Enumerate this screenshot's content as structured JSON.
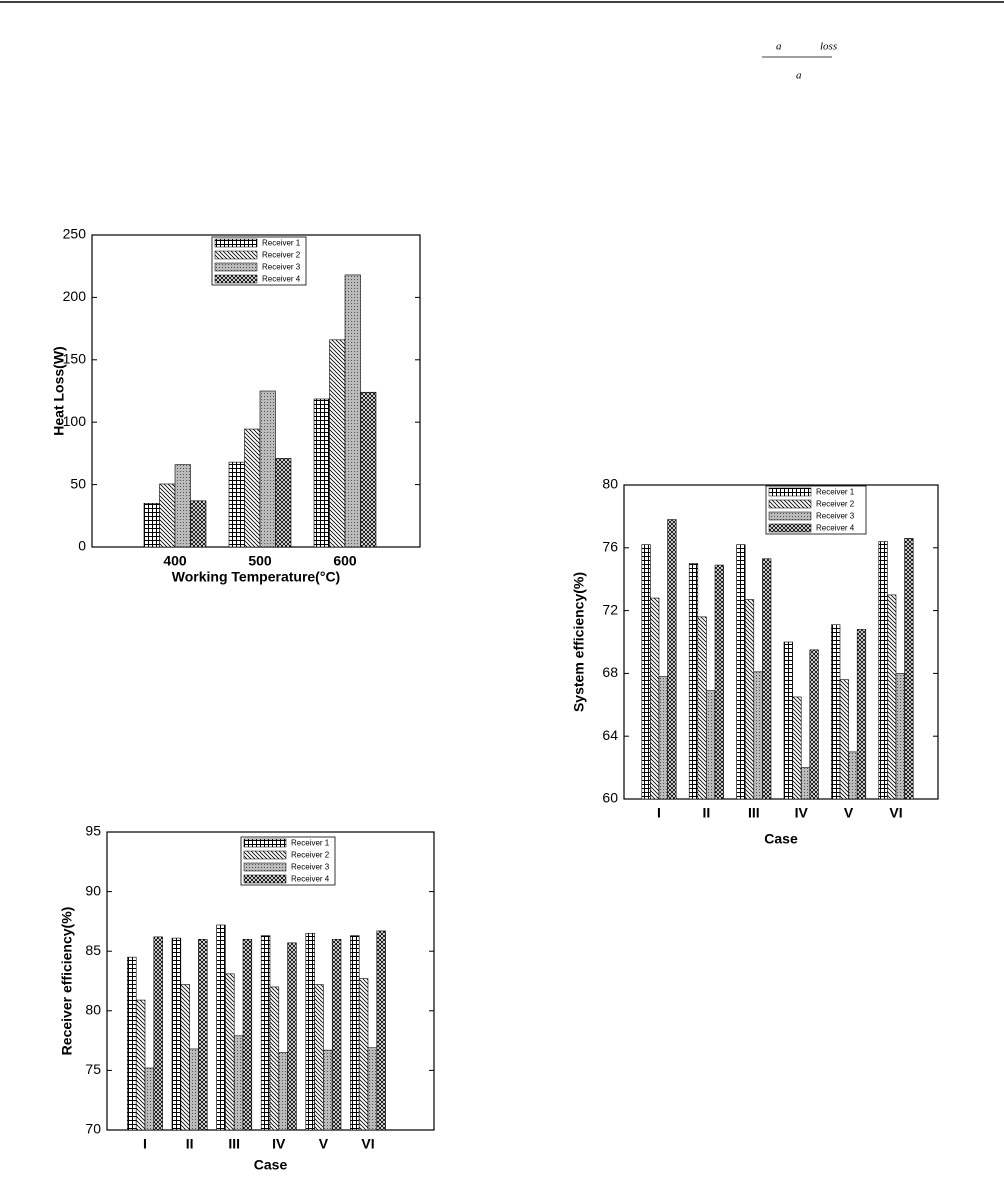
{
  "formula": {
    "numerator": [
      "a",
      "loss"
    ],
    "denominator": "a"
  },
  "chart_data": [
    {
      "type": "bar",
      "ylabel": "Heat Loss(W)",
      "xlabel": "Working Temperature(°C)",
      "categories": [
        "400",
        "500",
        "600"
      ],
      "series": [
        {
          "name": "Receiver 1",
          "values": [
            35,
            68,
            118.6
          ]
        },
        {
          "name": "Receiver 2",
          "values": [
            50.5,
            94.5,
            166
          ]
        },
        {
          "name": "Receiver 3",
          "values": [
            66,
            125,
            218
          ]
        },
        {
          "name": "Receiver 4",
          "values": [
            37,
            71,
            124
          ]
        }
      ],
      "ylim": [
        0,
        250
      ],
      "yticks": [
        0,
        50,
        100,
        150,
        200,
        250
      ]
    },
    {
      "type": "bar",
      "ylabel": "System efficiency(%)",
      "xlabel": "Case",
      "categories": [
        "I",
        "II",
        "III",
        "IV",
        "V",
        "VI"
      ],
      "series": [
        {
          "name": "Receiver 1",
          "values": [
            76.2,
            75.0,
            76.2,
            70.0,
            71.1,
            76.4
          ]
        },
        {
          "name": "Receiver 2",
          "values": [
            72.8,
            71.6,
            72.7,
            66.5,
            67.6,
            73.0
          ]
        },
        {
          "name": "Receiver 3",
          "values": [
            67.8,
            66.9,
            68.1,
            62.0,
            63.0,
            68.0
          ]
        },
        {
          "name": "Receiver 4",
          "values": [
            77.8,
            74.9,
            75.3,
            69.5,
            70.8,
            76.6
          ]
        }
      ],
      "ylim": [
        60,
        80
      ],
      "yticks": [
        60,
        64,
        68,
        72,
        76,
        80
      ]
    },
    {
      "type": "bar",
      "ylabel": "Receiver efficiency(%)",
      "xlabel": "Case",
      "categories": [
        "I",
        "II",
        "III",
        "IV",
        "V",
        "VI"
      ],
      "series": [
        {
          "name": "Receiver 1",
          "values": [
            84.5,
            86.1,
            87.2,
            86.3,
            86.5,
            86.3
          ]
        },
        {
          "name": "Receiver 2",
          "values": [
            80.9,
            82.2,
            83.1,
            82.0,
            82.2,
            82.7
          ]
        },
        {
          "name": "Receiver 3",
          "values": [
            75.2,
            76.8,
            77.9,
            76.5,
            76.7,
            76.9
          ]
        },
        {
          "name": "Receiver 4",
          "values": [
            86.2,
            86.0,
            86.0,
            85.7,
            86.0,
            86.7
          ]
        }
      ],
      "ylim": [
        70,
        95
      ],
      "yticks": [
        70,
        75,
        80,
        85,
        90,
        95
      ]
    }
  ]
}
